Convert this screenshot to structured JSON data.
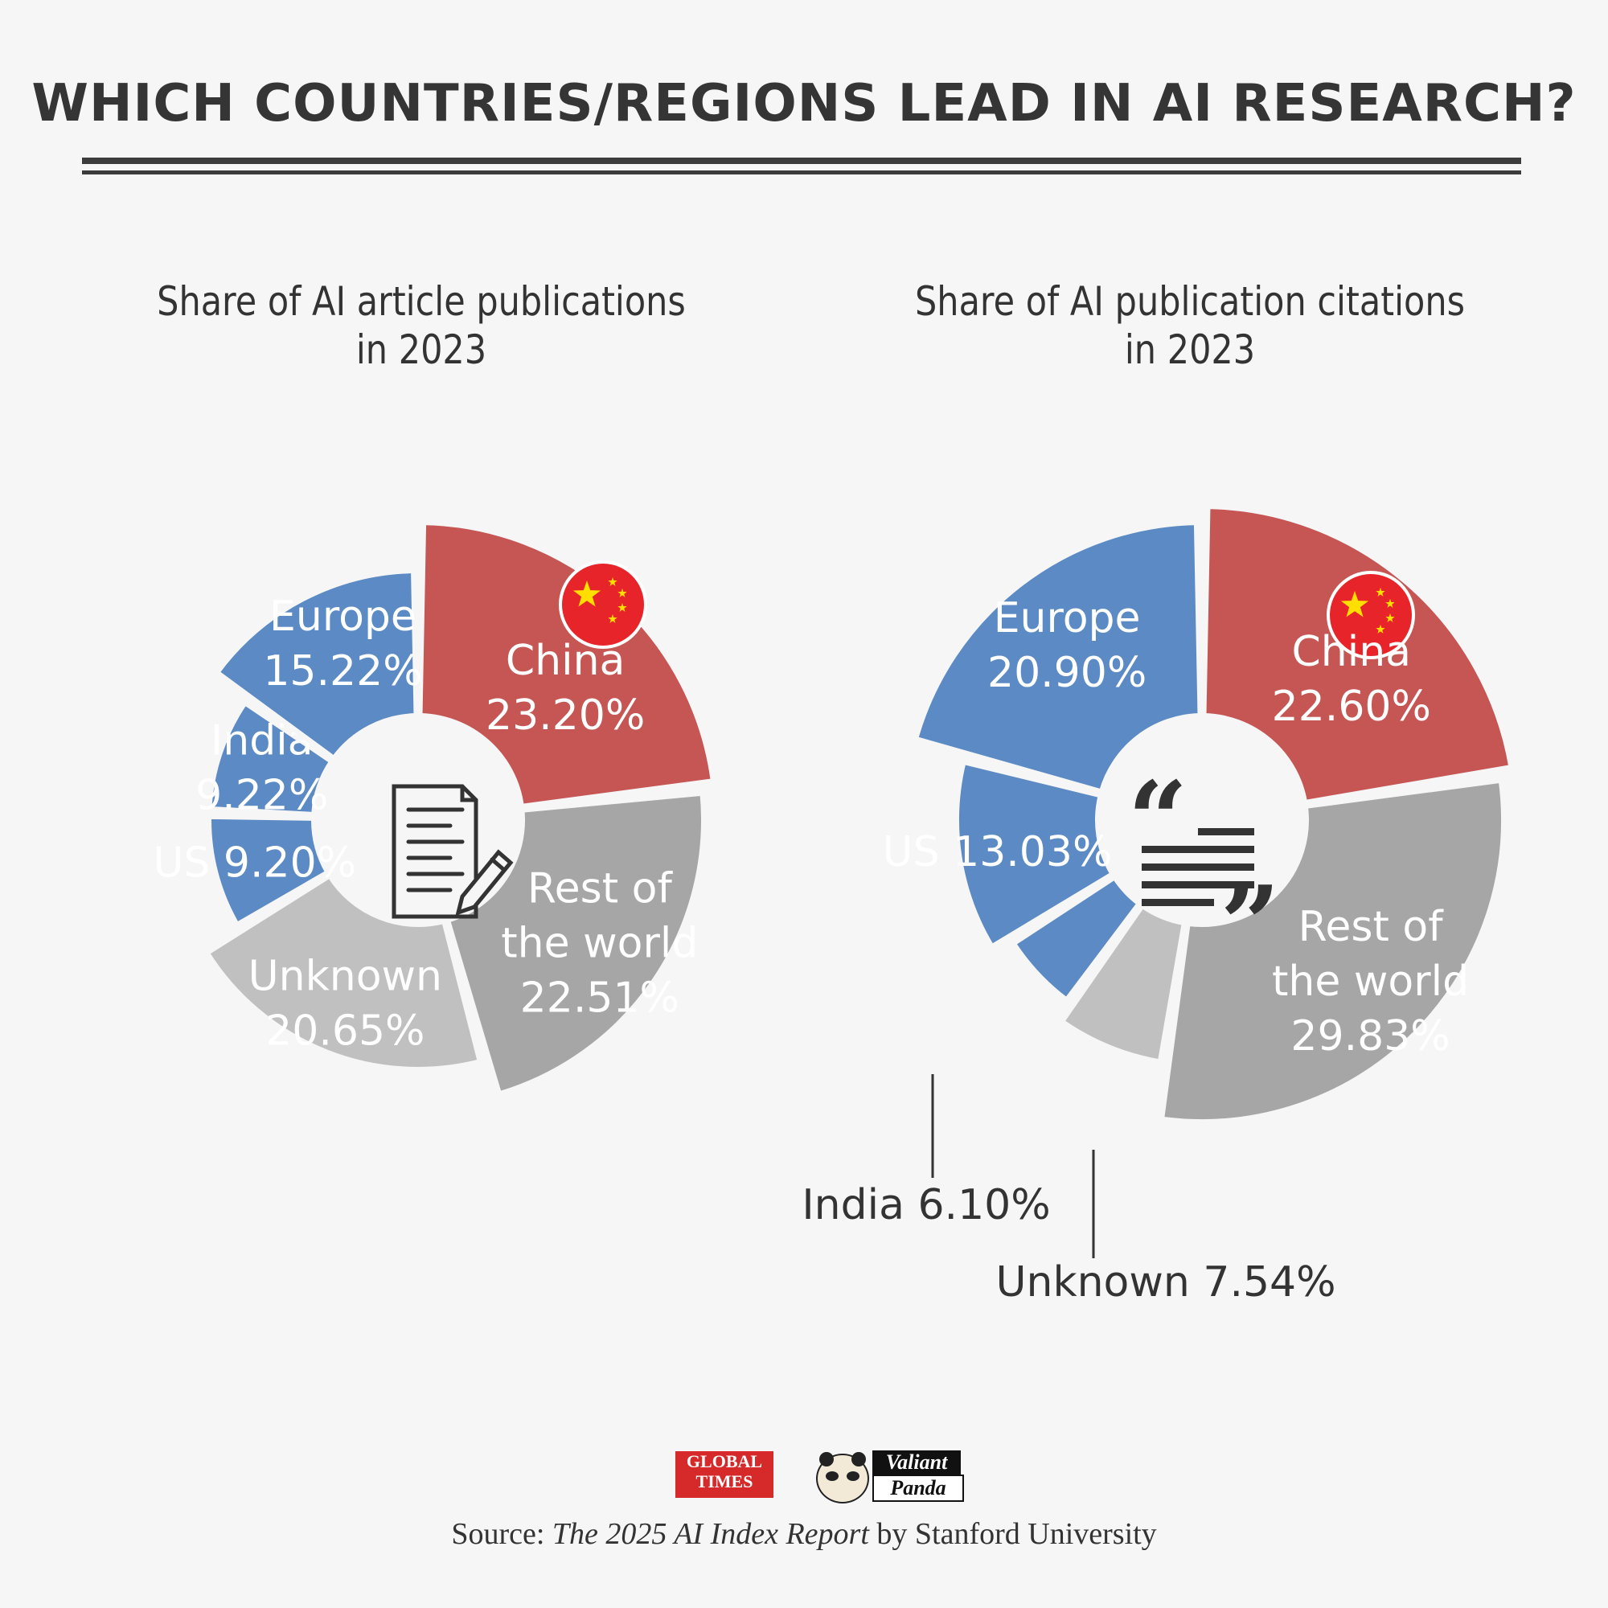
{
  "title": "WHICH COUNTRIES/REGIONS LEAD IN AI RESEARCH?",
  "colors": {
    "china": "#c55654",
    "blue": "#5b8ac4",
    "rest": "#a6a6a6",
    "unknown": "#c1c0c1",
    "background": "#f6f6f6"
  },
  "chart_data": [
    {
      "type": "pie",
      "title_line1": "Share of AI article publications",
      "title_line2": "in 2023",
      "center_icon": "document-pencil-icon",
      "slices": [
        {
          "label": "China",
          "value_text": "23.20%",
          "value": 23.2,
          "color": "#c55654",
          "flag": true
        },
        {
          "label": "Rest of the world",
          "label_lines": [
            "Rest of",
            "the world"
          ],
          "value_text": "22.51%",
          "value": 22.51,
          "color": "#a6a6a6"
        },
        {
          "label": "Unknown",
          "value_text": "20.65%",
          "value": 20.65,
          "color": "#c1c0c1"
        },
        {
          "label": "US",
          "value_text": "9.20%",
          "value": 9.2,
          "color": "#5b8ac4",
          "single_line": "US 9.20%"
        },
        {
          "label": "India",
          "value_text": "9.22%",
          "value": 9.22,
          "color": "#5b8ac4"
        },
        {
          "label": "Europe",
          "value_text": "15.22%",
          "value": 15.22,
          "color": "#5b8ac4"
        }
      ]
    },
    {
      "type": "pie",
      "title_line1": "Share of AI publication citations",
      "title_line2": "in 2023",
      "center_icon": "quote-icon",
      "slices": [
        {
          "label": "China",
          "value_text": "22.60%",
          "value": 22.6,
          "color": "#c55654",
          "flag": true
        },
        {
          "label": "Rest of the world",
          "label_lines": [
            "Rest of",
            "the world"
          ],
          "value_text": "29.83%",
          "value": 29.83,
          "color": "#a6a6a6"
        },
        {
          "label": "Unknown",
          "value_text": "7.54%",
          "value": 7.54,
          "color": "#c1c0c1",
          "callout": "Unknown 7.54%"
        },
        {
          "label": "India",
          "value_text": "6.10%",
          "value": 6.1,
          "color": "#5b8ac4",
          "callout": "India 6.10%"
        },
        {
          "label": "US",
          "value_text": "13.03%",
          "value": 13.03,
          "color": "#5b8ac4",
          "single_line": "US 13.03%"
        },
        {
          "label": "Europe",
          "value_text": "20.90%",
          "value": 20.9,
          "color": "#5b8ac4"
        }
      ]
    }
  ],
  "logos": {
    "global_times_line1": "GLOBAL",
    "global_times_line2": "TIMES",
    "valiant_panda_line1": "Valiant",
    "valiant_panda_line2": "Panda"
  },
  "source": {
    "prefix": "Source: ",
    "report": "The 2025 AI Index Report",
    "suffix": " by Stanford University"
  }
}
